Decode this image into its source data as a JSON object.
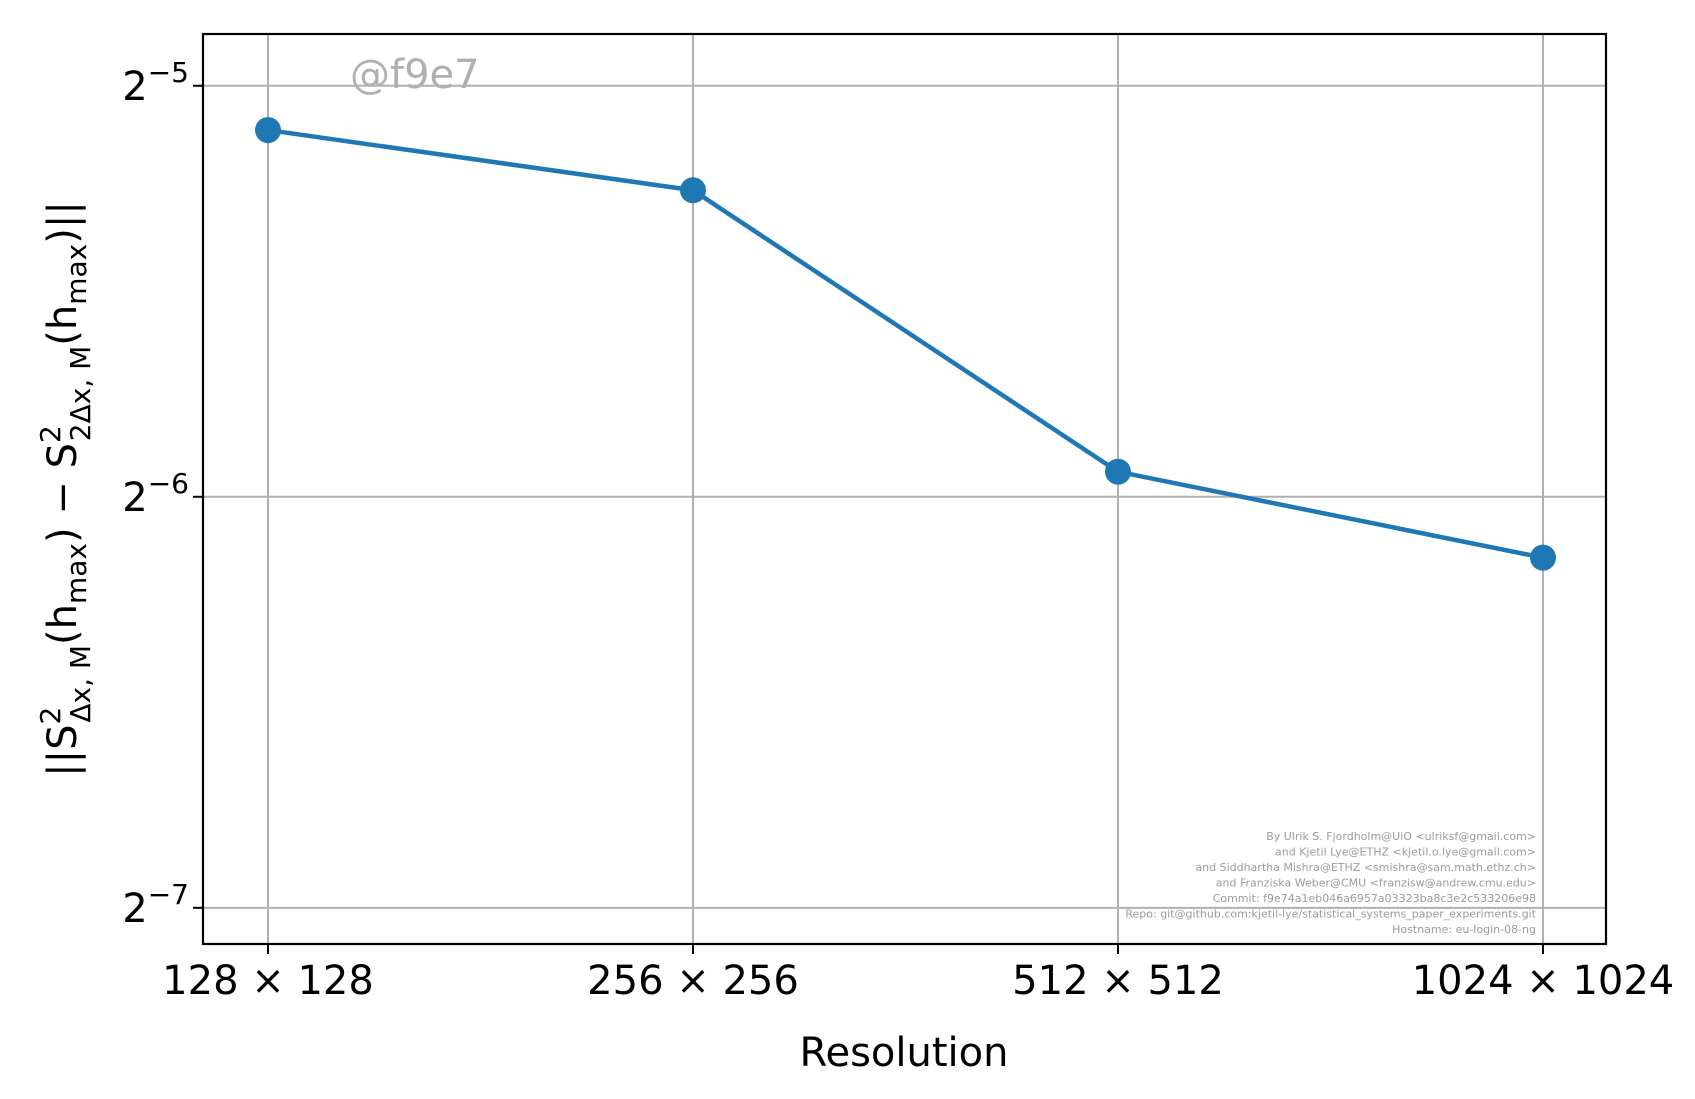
{
  "chart_data": {
    "type": "line",
    "xlabel": "Resolution",
    "ylabel_parts": {
      "open": "||S",
      "sub1": "Δx, M",
      "sup1": "2",
      "mid1": "(h",
      "sub_max1": "max",
      "mid2": ") − S",
      "sub2": "2Δx, M",
      "sup2": "2",
      "mid3": "(h",
      "sub_max2": "max",
      "close": ")||"
    },
    "categories": [
      "128 × 128",
      "256 × 256",
      "512 × 512",
      "1024 × 1024"
    ],
    "y_scale": "log2",
    "y_ticks": [
      {
        "base": "2",
        "exp": "−5",
        "value": 0.03125
      },
      {
        "base": "2",
        "exp": "−6",
        "value": 0.015625
      },
      {
        "base": "2",
        "exp": "−7",
        "value": 0.0078125
      }
    ],
    "ylim": [
      0.00735,
      0.0341
    ],
    "series": [
      {
        "values": [
          0.029,
          0.0262,
          0.0163,
          0.0141
        ],
        "color": "#1f77b4"
      }
    ],
    "grid": true
  },
  "watermark": "@f9e7",
  "credits": [
    "By Ulrik S. Fjordholm@UiO <ulriksf@gmail.com>",
    "and Kjetil Lye@ETHZ <kjetil.o.lye@gmail.com>",
    "and Siddhartha Mishra@ETHZ <smishra@sam.math.ethz.ch>",
    "and Franziska Weber@CMU <franzisw@andrew.cmu.edu>",
    "Commit: f9e74a1eb046a6957a03323ba8c3e2c533206e98",
    "Repo: git@github.com:kjetil-lye/statistical_systems_paper_experiments.git",
    "Hostname: eu-login-08-ng"
  ]
}
